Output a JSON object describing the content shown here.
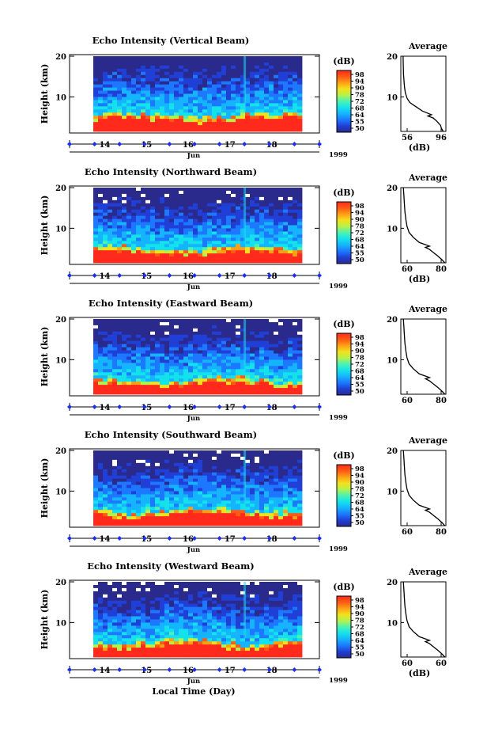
{
  "figure": {
    "xlabel": "Local Time (Day)",
    "month_label": "Jun",
    "year_label": "1999",
    "day_ticks": [
      "14",
      "15",
      "16",
      "17",
      "18"
    ],
    "colors": {
      "scale": [
        "#2a2a8c",
        "#1f3fd6",
        "#1c78ff",
        "#14b4ff",
        "#14e2ea",
        "#4af2b4",
        "#b4f24a",
        "#f2e21c",
        "#ffa014",
        "#ff5a14",
        "#ff2a1c"
      ],
      "marker": "#1c2cff",
      "missing": "#ffffff"
    }
  },
  "chart_data": [
    {
      "type": "heatmap",
      "title": "Echo Intensity (Vertical Beam)",
      "ylabel": "Height (km)",
      "yticks": [
        "20",
        "10"
      ],
      "ylim": [
        1.5,
        20
      ],
      "x_days": [
        13.5,
        18.5
      ],
      "colorbar": {
        "unit": "(dB)",
        "ticks": [
          "98",
          "94",
          "90",
          "78",
          "72",
          "68",
          "64",
          "55",
          "50"
        ]
      },
      "surface": {
        "base_km": 5.0,
        "amp_km": 1.0
      },
      "average": {
        "title": "Average",
        "xlabel": "(dB)",
        "xticks": [
          "56",
          "96"
        ],
        "xlim": [
          50,
          100
        ],
        "yticks": [
          "20",
          "10"
        ],
        "profile": [
          [
            97,
            1.5
          ],
          [
            95,
            2.3
          ],
          [
            94,
            3.0
          ],
          [
            90,
            4.0
          ],
          [
            86,
            4.8
          ],
          [
            80,
            5.3
          ],
          [
            84,
            5.6
          ],
          [
            74,
            6.5
          ],
          [
            66,
            7.7
          ],
          [
            60,
            8.6
          ],
          [
            57,
            9.6
          ],
          [
            55,
            11
          ],
          [
            54,
            12.5
          ],
          [
            53.5,
            14
          ],
          [
            53,
            15.5
          ],
          [
            52.8,
            17
          ],
          [
            52.6,
            18.5
          ],
          [
            52.5,
            20
          ]
        ]
      }
    },
    {
      "type": "heatmap",
      "title": "Echo Intensity (Northward Beam)",
      "ylabel": "Height (km)",
      "yticks": [
        "20",
        "10"
      ],
      "ylim": [
        1.5,
        20
      ],
      "x_days": [
        13.5,
        18.5
      ],
      "colorbar": {
        "unit": "(dB)",
        "ticks": [
          "98",
          "94",
          "90",
          "78",
          "72",
          "68",
          "64",
          "55",
          "50"
        ]
      },
      "surface": {
        "base_km": 4.7,
        "amp_km": 1.0
      },
      "average": {
        "title": "Average",
        "xlabel": "(dB)",
        "xticks": [
          "60",
          "80"
        ],
        "xlim": [
          52,
          96
        ],
        "yticks": [
          "20",
          "10"
        ],
        "profile": [
          [
            95,
            1.5
          ],
          [
            92,
            2.3
          ],
          [
            88,
            3.2
          ],
          [
            84,
            4.0
          ],
          [
            80,
            4.8
          ],
          [
            76,
            5.3
          ],
          [
            80,
            5.6
          ],
          [
            70,
            6.5
          ],
          [
            64,
            7.8
          ],
          [
            60,
            9.0
          ],
          [
            58,
            10.5
          ],
          [
            57,
            12
          ],
          [
            56,
            14
          ],
          [
            55.5,
            16
          ],
          [
            55,
            18
          ],
          [
            54.5,
            20
          ]
        ]
      }
    },
    {
      "type": "heatmap",
      "title": "Echo Intensity (Eastward Beam)",
      "ylabel": "Height (km)",
      "yticks": [
        "20",
        "10"
      ],
      "ylim": [
        1.5,
        20
      ],
      "x_days": [
        13.5,
        18.5
      ],
      "colorbar": {
        "unit": "(dB)",
        "ticks": [
          "98",
          "94",
          "90",
          "78",
          "72",
          "68",
          "64",
          "55",
          "50"
        ]
      },
      "surface": {
        "base_km": 4.6,
        "amp_km": 1.1
      },
      "average": {
        "title": "Average",
        "xlabel": "",
        "xticks": [
          "60",
          "80"
        ],
        "xlim": [
          52,
          96
        ],
        "yticks": [
          "20",
          "10"
        ],
        "profile": [
          [
            95,
            1.5
          ],
          [
            92,
            2.3
          ],
          [
            88,
            3.2
          ],
          [
            84,
            4.0
          ],
          [
            80,
            4.8
          ],
          [
            76,
            5.3
          ],
          [
            80,
            5.6
          ],
          [
            70,
            6.5
          ],
          [
            64,
            7.8
          ],
          [
            60,
            9.0
          ],
          [
            58,
            10.5
          ],
          [
            57,
            12
          ],
          [
            56,
            14
          ],
          [
            55.5,
            16
          ],
          [
            55,
            18
          ],
          [
            54.5,
            20
          ]
        ]
      }
    },
    {
      "type": "heatmap",
      "title": "Echo Intensity (Southward Beam)",
      "ylabel": "Height (km)",
      "yticks": [
        "20",
        "10"
      ],
      "ylim": [
        1.5,
        20
      ],
      "x_days": [
        13.5,
        18.5
      ],
      "colorbar": {
        "unit": "(dB)",
        "ticks": [
          "98",
          "94",
          "90",
          "78",
          "72",
          "68",
          "64",
          "55",
          "50"
        ]
      },
      "surface": {
        "base_km": 4.9,
        "amp_km": 1.1
      },
      "average": {
        "title": "Average",
        "xlabel": "",
        "xticks": [
          "60",
          "80"
        ],
        "xlim": [
          52,
          96
        ],
        "yticks": [
          "20",
          "10"
        ],
        "profile": [
          [
            95,
            1.5
          ],
          [
            92,
            2.3
          ],
          [
            88,
            3.2
          ],
          [
            84,
            4.0
          ],
          [
            80,
            4.8
          ],
          [
            76,
            5.3
          ],
          [
            80,
            5.6
          ],
          [
            70,
            6.5
          ],
          [
            64,
            7.8
          ],
          [
            60,
            9.0
          ],
          [
            58,
            10.5
          ],
          [
            57,
            12
          ],
          [
            56,
            14
          ],
          [
            55.5,
            16
          ],
          [
            55,
            18
          ],
          [
            54.5,
            20
          ]
        ]
      }
    },
    {
      "type": "heatmap",
      "title": "Echo Intensity (Westward Beam)",
      "ylabel": "Height (km)",
      "yticks": [
        "20",
        "10"
      ],
      "ylim": [
        1.5,
        20
      ],
      "x_days": [
        13.5,
        18.5
      ],
      "colorbar": {
        "unit": "(dB)",
        "ticks": [
          "98",
          "94",
          "90",
          "78",
          "72",
          "68",
          "64",
          "55",
          "50"
        ]
      },
      "surface": {
        "base_km": 4.8,
        "amp_km": 1.1
      },
      "average": {
        "title": "Average",
        "xlabel": "(dB)",
        "xticks": [
          "60",
          "60"
        ],
        "xlim": [
          52,
          96
        ],
        "yticks": [
          "20",
          "10"
        ],
        "profile": [
          [
            95,
            1.5
          ],
          [
            92,
            2.3
          ],
          [
            88,
            3.2
          ],
          [
            84,
            4.0
          ],
          [
            80,
            4.8
          ],
          [
            76,
            5.3
          ],
          [
            80,
            5.6
          ],
          [
            70,
            6.5
          ],
          [
            64,
            7.8
          ],
          [
            60,
            9.0
          ],
          [
            58,
            10.5
          ],
          [
            57,
            12
          ],
          [
            56,
            14
          ],
          [
            55.5,
            16
          ],
          [
            55,
            18
          ],
          [
            54.5,
            20
          ]
        ]
      }
    }
  ]
}
